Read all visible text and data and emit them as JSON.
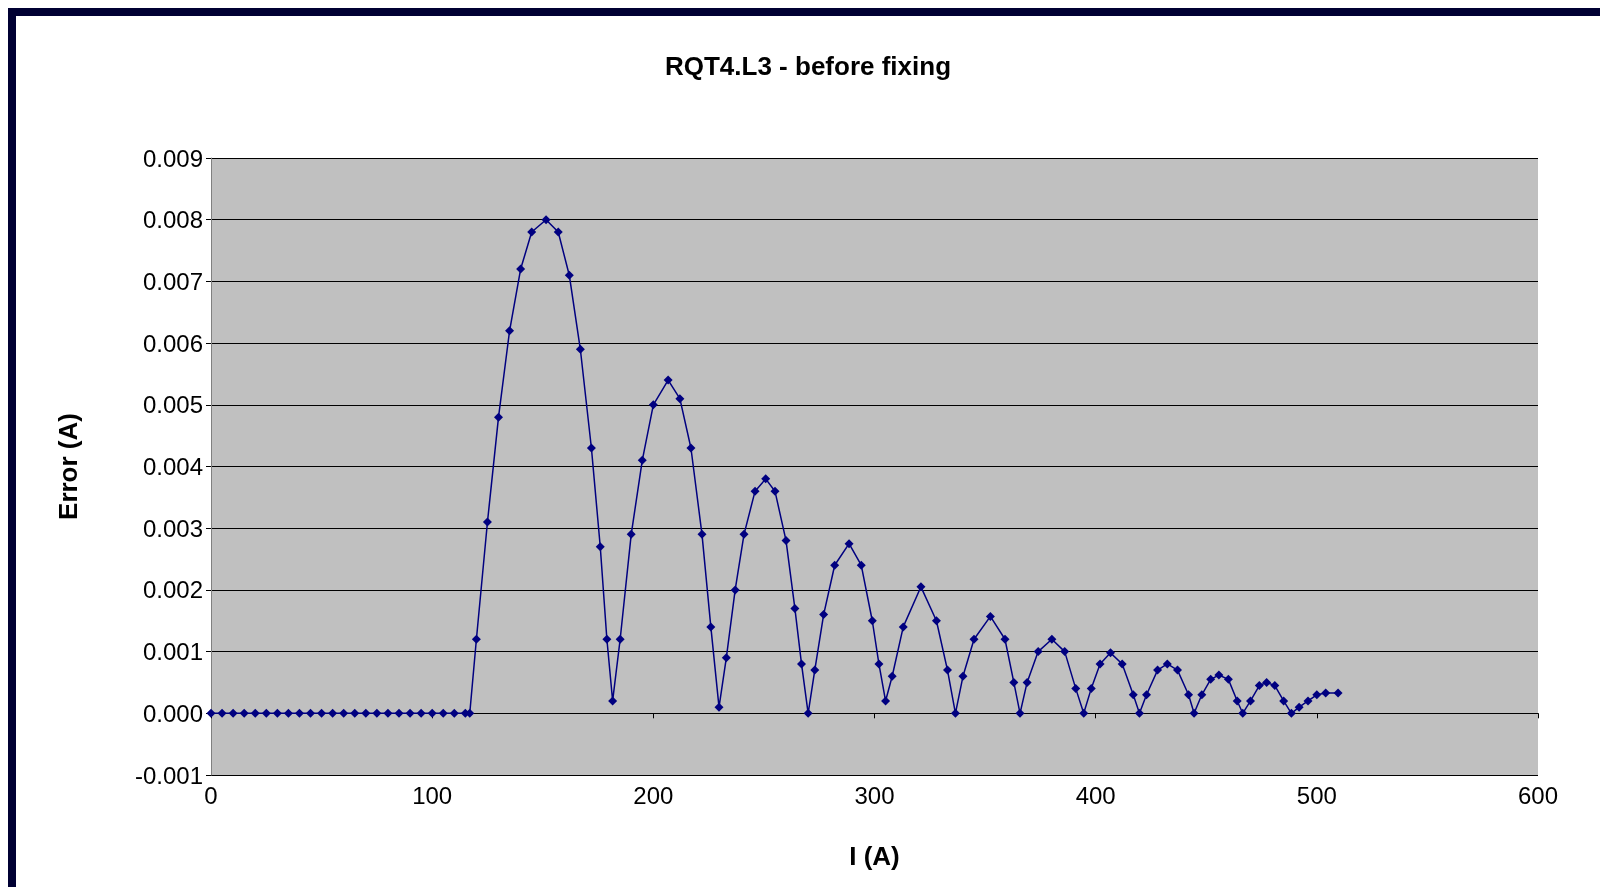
{
  "chart_data": {
    "type": "line",
    "title": "RQT4.L3 - before fixing",
    "xlabel": "I (A)",
    "ylabel": "Error (A)",
    "marker": "diamond",
    "line_style": "solid",
    "grid": "y",
    "xlim": [
      0,
      600
    ],
    "xticks": [
      0,
      100,
      200,
      300,
      400,
      500,
      600
    ],
    "ylim": [
      -0.001,
      0.009
    ],
    "yticks": [
      {
        "value": -0.001,
        "label": "-0.001"
      },
      {
        "value": 0,
        "label": "0.000"
      },
      {
        "value": 0.001,
        "label": "0.001"
      },
      {
        "value": 0.002,
        "label": "0.002"
      },
      {
        "value": 0.003,
        "label": "0.003"
      },
      {
        "value": 0.004,
        "label": "0.004"
      },
      {
        "value": 0.005,
        "label": "0.005"
      },
      {
        "value": 0.006,
        "label": "0.006"
      },
      {
        "value": 0.007,
        "label": "0.007"
      },
      {
        "value": 0.008,
        "label": "0.008"
      },
      {
        "value": 0.009,
        "label": "0.009"
      }
    ],
    "series": [
      {
        "color": "#000080",
        "x": [
          0,
          5,
          10,
          15,
          20,
          25,
          30,
          35,
          40,
          45,
          50,
          55,
          60,
          65,
          70,
          75,
          80,
          85,
          90,
          95,
          100,
          105,
          110,
          115,
          117,
          120,
          125,
          130,
          135,
          140,
          145,
          151.5,
          157,
          162,
          167,
          172,
          176,
          179,
          181.6,
          185,
          190,
          195,
          200,
          206.7,
          212,
          217,
          222,
          226,
          229.7,
          233,
          237,
          241,
          246,
          250.8,
          255,
          260,
          264,
          267,
          270,
          273,
          277,
          282,
          288.5,
          294,
          299,
          302,
          305,
          308,
          313,
          321,
          328,
          333,
          336.6,
          340,
          345,
          352.4,
          359,
          363,
          365.8,
          369,
          374,
          380.2,
          386,
          391,
          394.6,
          398,
          402,
          406.7,
          412,
          417,
          419.8,
          423,
          428,
          432.4,
          437,
          442,
          444.5,
          448,
          452,
          455.7,
          460,
          464,
          466.5,
          470,
          474,
          477.3,
          481,
          485,
          488.5,
          492,
          496,
          500,
          504,
          509.6
        ],
        "values": [
          0,
          0,
          0,
          0,
          0,
          0,
          0,
          0,
          0,
          0,
          0,
          0,
          0,
          0,
          0,
          0,
          0,
          0,
          0,
          0,
          0,
          0,
          0,
          0,
          0,
          0.0012,
          0.0031,
          0.0048,
          0.0062,
          0.0072,
          0.0078,
          0.008,
          0.0078,
          0.0071,
          0.0059,
          0.0043,
          0.0027,
          0.0012,
          0.0002,
          0.0012,
          0.0029,
          0.0041,
          0.005,
          0.0054,
          0.0051,
          0.0043,
          0.0029,
          0.0014,
          0.0001,
          0.0009,
          0.002,
          0.0029,
          0.0036,
          0.0038,
          0.0036,
          0.0028,
          0.0017,
          0.0008,
          0,
          0.0007,
          0.0016,
          0.0024,
          0.00275,
          0.0024,
          0.0015,
          0.0008,
          0.0002,
          0.0006,
          0.0014,
          0.00205,
          0.0015,
          0.0007,
          0,
          0.0006,
          0.0012,
          0.00157,
          0.0012,
          0.0005,
          0,
          0.0005,
          0.001,
          0.0012,
          0.001,
          0.0004,
          0,
          0.0004,
          0.0008,
          0.00098,
          0.0008,
          0.0003,
          0,
          0.0003,
          0.0007,
          0.0008,
          0.0007,
          0.0003,
          0,
          0.0003,
          0.00055,
          0.00062,
          0.00055,
          0.0002,
          0,
          0.0002,
          0.00045,
          0.0005,
          0.00045,
          0.0002,
          0,
          0.0001,
          0.0002,
          0.0003,
          0.00033,
          0.00033
        ]
      }
    ]
  }
}
